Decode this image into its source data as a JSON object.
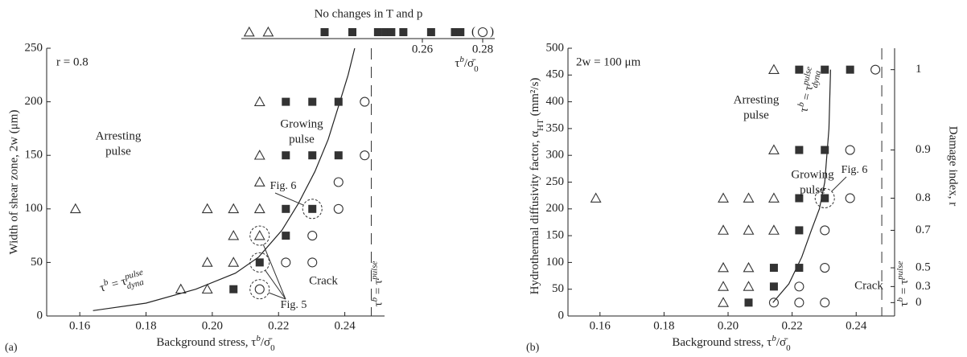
{
  "chart_data": [
    {
      "type": "scatter",
      "panel_label": "(a)",
      "x_label": [
        "Background stress, τ",
        "b",
        "/σ̄",
        "0"
      ],
      "y_label": "Width of shear zone, 2w (μm)",
      "xlim": [
        0.15,
        0.252
      ],
      "xticks": [
        0.16,
        0.18,
        {
          "value": 0.2,
          "label": "0.20"
        },
        0.22,
        0.24
      ],
      "ylim": [
        0,
        250
      ],
      "yticks": [
        0,
        50,
        100,
        150,
        200,
        250
      ],
      "top_title": "No changes in T and p",
      "x2_label": [
        "τ",
        "b",
        "/σ̄",
        "0"
      ],
      "x2lim": [
        0.2,
        0.284
      ],
      "x2ticks": [
        0.26,
        0.28
      ],
      "threshold": 0.248,
      "threshold_label": [
        "τ",
        "b",
        " = τ",
        "pulse"
      ],
      "curve": {
        "x": [
          0.164,
          0.18,
          0.195,
          0.207,
          0.214,
          0.221,
          0.226,
          0.231,
          0.235,
          0.238,
          0.241,
          0.243
        ],
        "y": [
          5,
          12,
          25,
          40,
          55,
          80,
          105,
          135,
          165,
          195,
          225,
          250
        ]
      },
      "curve_label": [
        "τ",
        "b",
        " = τ",
        "pulse",
        "dyna"
      ],
      "series": [
        {
          "marker": "triangle",
          "color": "#333333",
          "x": [
            0.1587,
            0.1905,
            0.1985,
            0.1985,
            0.2064,
            0.2064,
            0.2143,
            0.1985,
            0.2064,
            0.2143,
            0.2143,
            0.2143,
            0.2143
          ],
          "y": [
            100,
            25,
            25,
            50,
            50,
            75,
            75,
            100,
            100,
            100,
            125,
            150,
            200
          ]
        },
        {
          "marker": "square",
          "color": "#333333",
          "x": [
            0.2064,
            0.2143,
            0.2222,
            0.2222,
            0.2302,
            0.2222,
            0.2302,
            0.2381,
            0.2222,
            0.2302,
            0.2381
          ],
          "y": [
            25,
            50,
            75,
            100,
            100,
            150,
            150,
            150,
            200,
            200,
            200
          ]
        },
        {
          "marker": "circle",
          "color": "#333333",
          "x": [
            0.2143,
            0.2222,
            0.2302,
            0.2302,
            0.2381,
            0.2381,
            0.246,
            0.246
          ],
          "y": [
            25,
            50,
            50,
            75,
            100,
            125,
            150,
            200
          ]
        },
        {
          "marker": "triangle",
          "color": "#333333",
          "axis": "x2",
          "x": [
            0.2026,
            0.2089
          ]
        },
        {
          "marker": "square",
          "color": "#333333",
          "axis": "x2",
          "x": [
            0.2276,
            0.2368,
            0.2453,
            0.2479,
            0.2497,
            0.2537,
            0.2629,
            0.2708,
            0.2726
          ]
        },
        {
          "marker": "circle",
          "color": "#333333",
          "axis": "x2",
          "x": [
            0.28
          ],
          "bracket": [
            "(",
            ")"
          ]
        }
      ],
      "figure_refs": [
        {
          "label": "Fig. 5",
          "points": [
            [
              0,
              6
            ],
            [
              1,
              1
            ],
            [
              2,
              0
            ]
          ]
        },
        {
          "label": "Fig. 6",
          "points": [
            [
              1,
              4
            ]
          ]
        }
      ],
      "annotations": [
        {
          "lines": [
            "r = 0.8"
          ]
        },
        {
          "lines": [
            "Arresting",
            "pulse"
          ]
        },
        {
          "lines": [
            "Growing",
            "pulse"
          ]
        },
        {
          "lines": [
            "Crack"
          ]
        }
      ]
    },
    {
      "type": "scatter",
      "panel_label": "(b)",
      "x_label": [
        "Background stress, τ",
        "b",
        "/σ̄",
        "0"
      ],
      "y_label": [
        "Hydrothermal diffusivity factor, α",
        "HT",
        " (mm²/s)"
      ],
      "y2_label": "Damage index, r",
      "xlim": [
        0.15,
        0.252
      ],
      "xticks": [
        0.16,
        0.18,
        {
          "value": 0.2,
          "label": "0.20"
        },
        0.22,
        0.24
      ],
      "ylim": [
        0,
        500
      ],
      "yticks": [
        0,
        50,
        100,
        150,
        200,
        250,
        300,
        350,
        400,
        450,
        500
      ],
      "damage_index_ticks": [
        {
          "r": 1,
          "at": 460
        },
        {
          "r": 0.9,
          "at": 310
        },
        {
          "r": 0.8,
          "at": 220
        },
        {
          "r": 0.7,
          "at": 160
        },
        {
          "r": 0.5,
          "at": 90
        },
        {
          "r": 0.3,
          "at": 55
        },
        {
          "r": 0,
          "at": 25
        }
      ],
      "threshold": 0.248,
      "threshold_label": [
        "τ",
        "b",
        " = τ",
        "pulse"
      ],
      "curve": {
        "x": [
          0.214,
          0.219,
          0.223,
          0.226,
          0.2285,
          0.2302,
          0.2315,
          0.232
        ],
        "y": [
          25,
          60,
          110,
          160,
          200,
          250,
          350,
          460
        ]
      },
      "curve_label": [
        "τ",
        "b",
        " = τ",
        "pulse",
        "dyna"
      ],
      "series": [
        {
          "marker": "triangle",
          "color": "#333333",
          "x": [
            0.2143,
            0.2143,
            0.1587,
            0.1985,
            0.2064,
            0.2143,
            0.1985,
            0.2064,
            0.2143,
            0.1985,
            0.2064,
            0.1985,
            0.2064,
            0.1985
          ],
          "y": [
            460,
            310,
            220,
            220,
            220,
            220,
            160,
            160,
            160,
            90,
            90,
            55,
            55,
            25
          ]
        },
        {
          "marker": "square",
          "color": "#333333",
          "x": [
            0.2222,
            0.2302,
            0.2381,
            0.2222,
            0.2302,
            0.2222,
            0.2302,
            0.2222,
            0.2143,
            0.2222,
            0.2143,
            0.2064
          ],
          "y": [
            460,
            460,
            460,
            310,
            310,
            220,
            220,
            160,
            90,
            90,
            55,
            25
          ]
        },
        {
          "marker": "circle",
          "color": "#333333",
          "x": [
            0.246,
            0.2381,
            0.2381,
            0.2302,
            0.2302,
            0.2222,
            0.2143,
            0.2222,
            0.2302
          ],
          "y": [
            460,
            310,
            220,
            160,
            90,
            55,
            25,
            25,
            25
          ]
        }
      ],
      "figure_refs": [
        {
          "label": "Fig. 6",
          "points": [
            [
              1,
              6
            ]
          ]
        }
      ],
      "annotations": [
        {
          "lines": [
            "2w = 100 μm"
          ]
        },
        {
          "lines": [
            "Arresting",
            "pulse"
          ]
        },
        {
          "lines": [
            "Growing",
            "pulse"
          ]
        },
        {
          "lines": [
            "Crack"
          ]
        }
      ]
    }
  ]
}
